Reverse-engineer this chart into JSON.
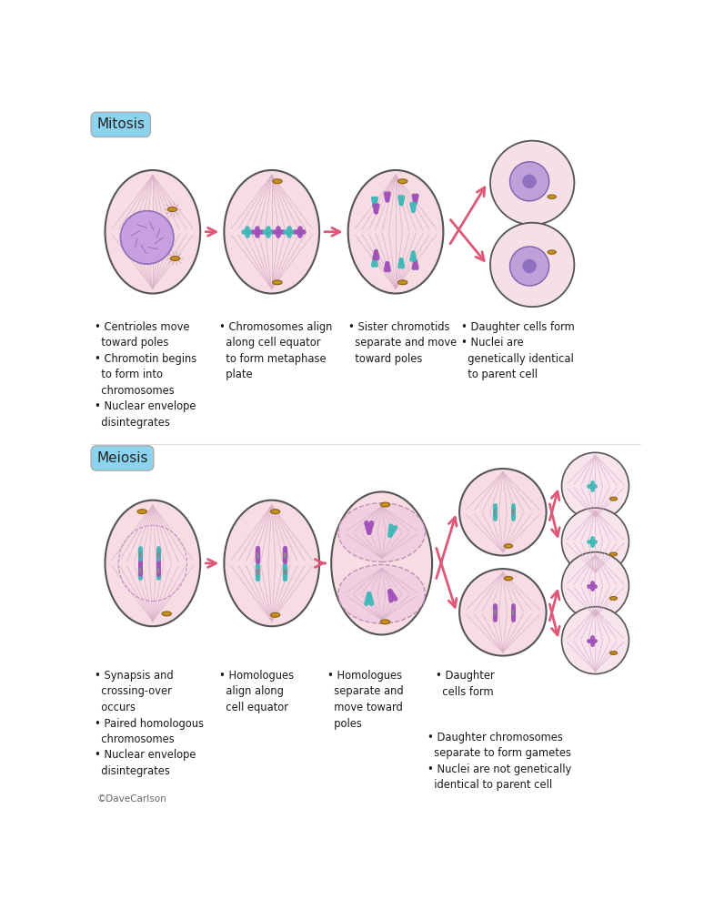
{
  "bg_color": "#ffffff",
  "cell_fill": "#f8dce4",
  "cell_edge": "#9a7080",
  "cell_edge_dark": "#555555",
  "spindle_color": "#d8b0c8",
  "nucleus_fill_light": "#d8b8e8",
  "nucleus_fill_dark": "#a888c8",
  "nucleus_edge": "#8060a8",
  "arrow_color": "#e05878",
  "title_box_color": "#8ad4f0",
  "title_text_color": "#222222",
  "chrom_cyan": "#40b8b8",
  "chrom_purple": "#a050b8",
  "chrom_yellow": "#c89020",
  "text_color": "#1a1a1a",
  "mitosis_title": "Mitosis",
  "meiosis_title": "Meiosis",
  "credit": "©DaveCarlson",
  "mitosis_labels": [
    "• Centrioles move\n  toward poles\n• Chromotin begins\n  to form into\n  chromosomes\n• Nuclear envelope\n  disintegrates",
    "• Chromosomes align\n  along cell equator\n  to form metaphase\n  plate",
    "• Sister chromotids\n  separate and move\n  toward poles",
    "• Daughter cells form\n• Nuclei are\n  genetically identical\n  to parent cell"
  ],
  "meiosis_labels": [
    "• Synapsis and\n  crossing-over\n  occurs\n• Paired homologous\n  chromosomes\n• Nuclear envelope\n  disintegrates",
    "• Homologues\n  align along\n  cell equator",
    "• Homologues\n  separate and\n  move toward\n  poles",
    "• Daughter\n  cells form",
    "• Daughter chromosomes\n  separate to form gametes\n• Nuclei are not genetically\n  identical to parent cell"
  ]
}
